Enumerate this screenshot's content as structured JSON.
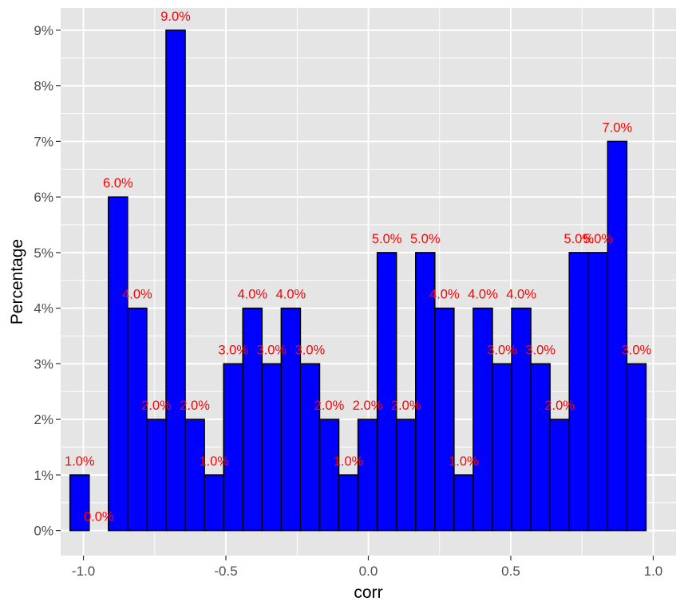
{
  "chart_data": {
    "type": "bar",
    "subtype": "histogram",
    "title": "",
    "xlabel": "corr",
    "ylabel": "Percentage",
    "xlim": [
      -1.08,
      1.08
    ],
    "ylim": [
      -0.0045,
      0.094
    ],
    "x_ticks": [
      -1.0,
      -0.5,
      0.0,
      0.5,
      1.0
    ],
    "x_tick_labels": [
      "-1.0",
      "-0.5",
      "0.0",
      "0.5",
      "1.0"
    ],
    "y_ticks": [
      0,
      0.01,
      0.02,
      0.03,
      0.04,
      0.05,
      0.06,
      0.07,
      0.08,
      0.09
    ],
    "y_tick_labels": [
      "0%",
      "1%",
      "2%",
      "3%",
      "4%",
      "5%",
      "6%",
      "7%",
      "8%",
      "9%"
    ],
    "grid": true,
    "legend": "none",
    "bin_width": 0.0674,
    "bin_centers": [
      -1.0135,
      -0.9461,
      -0.8787,
      -0.8113,
      -0.7439,
      -0.6765,
      -0.6091,
      -0.5417,
      -0.4743,
      -0.4069,
      -0.3395,
      -0.2721,
      -0.2047,
      -0.1373,
      -0.0699,
      -0.0025,
      0.0649,
      0.1323,
      0.1997,
      0.2671,
      0.3345,
      0.4019,
      0.4693,
      0.5367,
      0.6041,
      0.6715,
      0.7389,
      0.8063,
      0.8737,
      0.9411
    ],
    "values": [
      0.01,
      0.0,
      0.06,
      0.04,
      0.02,
      0.09,
      0.02,
      0.01,
      0.03,
      0.04,
      0.03,
      0.04,
      0.03,
      0.02,
      0.01,
      0.02,
      0.05,
      0.02,
      0.05,
      0.04,
      0.01,
      0.04,
      0.03,
      0.04,
      0.03,
      0.02,
      0.05,
      0.05,
      0.07,
      0.03
    ],
    "labels": [
      "1.0%",
      "0.0%",
      "6.0%",
      "4.0%",
      "2.0%",
      "9.0%",
      "2.0%",
      "1.0%",
      "3.0%",
      "4.0%",
      "3.0%",
      "4.0%",
      "3.0%",
      "2.0%",
      "1.0%",
      "2.0%",
      "5.0%",
      "2.0%",
      "5.0%",
      "4.0%",
      "1.0%",
      "4.0%",
      "3.0%",
      "4.0%",
      "3.0%",
      "2.0%",
      "5.0%",
      "5.0%",
      "7.0%",
      "3.0%"
    ],
    "colors": {
      "bar_fill": "#0000ff",
      "bar_outline": "#000000",
      "label": "#ff0000",
      "panel_bg": "#e5e5e5",
      "grid": "#ffffff"
    }
  }
}
